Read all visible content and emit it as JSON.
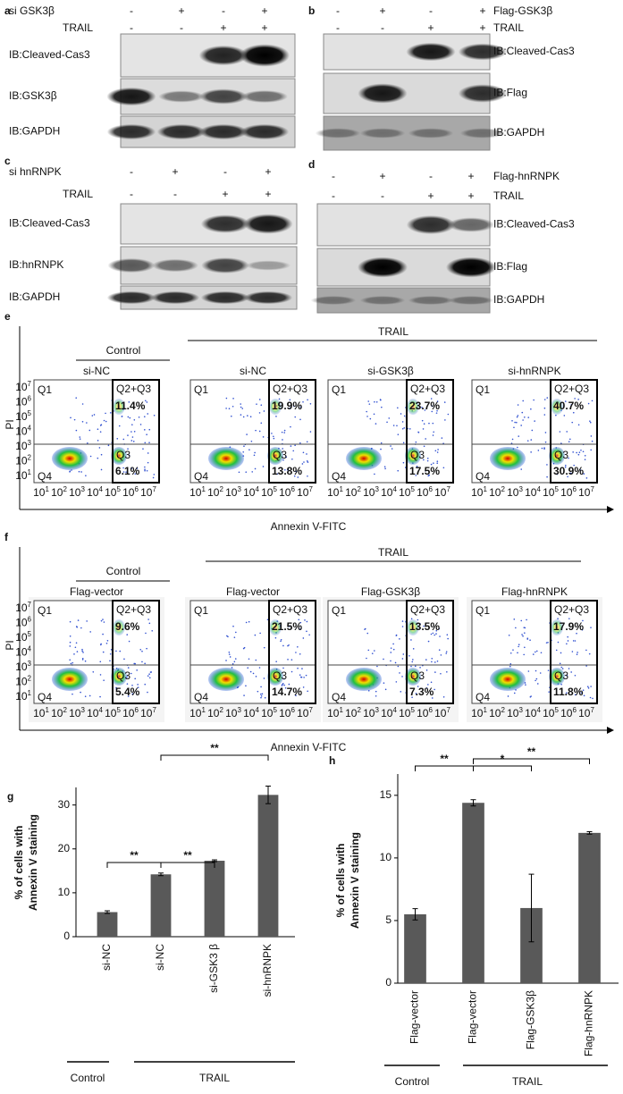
{
  "blots": [
    {
      "label": "a",
      "rows": [
        {
          "name": "si GSK3β",
          "signs": [
            "-",
            "+",
            "-",
            "+"
          ]
        },
        {
          "name": "TRAIL",
          "signs": [
            "-",
            "-",
            "+",
            "+"
          ]
        }
      ],
      "blots": [
        "IB:Cleaved-Cas3",
        "IB:GSK3β",
        "IB:GAPDH"
      ]
    },
    {
      "label": "b",
      "rows": [
        {
          "name": "Flag-GSK3β",
          "signs": [
            "-",
            "+",
            "-",
            "+"
          ]
        },
        {
          "name": "TRAIL",
          "signs": [
            "-",
            "-",
            "+",
            "+"
          ]
        }
      ],
      "blots": [
        "IB:Cleaved-Cas3",
        "IB:Flag",
        "IB:GAPDH"
      ]
    },
    {
      "label": "c",
      "rows": [
        {
          "name": "si hnRNPK",
          "signs": [
            "-",
            "+",
            "-",
            "+"
          ]
        },
        {
          "name": "TRAIL",
          "signs": [
            "-",
            "-",
            "+",
            "+"
          ]
        }
      ],
      "blots": [
        "IB:Cleaved-Cas3",
        "IB:hnRNPK",
        "IB:GAPDH"
      ]
    },
    {
      "label": "d",
      "rows": [
        {
          "name": "Flag-hnRNPK",
          "signs": [
            "-",
            "+",
            "-",
            "+"
          ]
        },
        {
          "name": "TRAIL",
          "signs": [
            "-",
            "-",
            "+",
            "+"
          ]
        }
      ],
      "blots": [
        "IB:Cleaved-Cas3",
        "IB:Flag",
        "IB:GAPDH"
      ]
    }
  ],
  "flow": [
    {
      "label": "e",
      "control_header": "Control",
      "treat_header": "TRAIL",
      "y_label": "PI",
      "x_label": "Annexin V-FITC",
      "axis_base": "10",
      "axis_exponents": [
        "1",
        "2",
        "3",
        "4",
        "5",
        "6",
        "7"
      ],
      "quadrants": [
        "Q1",
        "Q2+Q3",
        "Q3",
        "Q4"
      ],
      "plots": [
        {
          "name": "si-NC",
          "upper": "11.4%",
          "lower": "6.1%"
        },
        {
          "name": "si-NC",
          "upper": "19.9%",
          "lower": "13.8%"
        },
        {
          "name": "si-GSK3β",
          "upper": "23.7%",
          "lower": "17.5%"
        },
        {
          "name": "si-hnRNPK",
          "upper": "40.7%",
          "lower": "30.9%"
        }
      ]
    },
    {
      "label": "f",
      "control_header": "Control",
      "treat_header": "TRAIL",
      "y_label": "PI",
      "x_label": "Annexin V-FITC",
      "axis_base": "10",
      "axis_exponents": [
        "1",
        "2",
        "3",
        "4",
        "5",
        "6",
        "7"
      ],
      "quadrants": [
        "Q1",
        "Q2+Q3",
        "Q3",
        "Q4"
      ],
      "plots": [
        {
          "name": "Flag-vector",
          "upper": "9.6%",
          "lower": "5.4%"
        },
        {
          "name": "Flag-vector",
          "upper": "21.5%",
          "lower": "14.7%"
        },
        {
          "name": "Flag-GSK3β",
          "upper": "13.5%",
          "lower": "7.3%"
        },
        {
          "name": "Flag-hnRNPK",
          "upper": "17.9%",
          "lower": "11.8%"
        }
      ]
    }
  ],
  "chart_data": [
    {
      "type": "bar",
      "label": "g",
      "y_label": [
        "% of cells with",
        "Annexin V staining"
      ],
      "categories": [
        "si-NC",
        "si-NC",
        "si-GSK3 β",
        "si-hnRNPK"
      ],
      "values": [
        5.6,
        14.2,
        17.3,
        32.3
      ],
      "errors": [
        0.3,
        0.3,
        0.2,
        2.0
      ],
      "color": "#595959",
      "ylim": [
        0,
        34
      ],
      "yticks": [
        0,
        10,
        20,
        30
      ],
      "groups": [
        "Control",
        "TRAIL"
      ],
      "significance": [
        "**",
        "**",
        "**"
      ]
    },
    {
      "type": "bar",
      "label": "h",
      "y_label": [
        "% of cells with",
        "Annexin V staining"
      ],
      "categories": [
        "Flag-vector",
        "Flag-vector",
        "Flag-GSK3β",
        "Flag-hnRNPK"
      ],
      "values": [
        5.5,
        14.4,
        6.0,
        12.0
      ],
      "errors": [
        0.45,
        0.25,
        2.7,
        0.1
      ],
      "color": "#595959",
      "ylim": [
        0,
        16.7
      ],
      "yticks": [
        0,
        5,
        10,
        15
      ],
      "groups": [
        "Control",
        "TRAIL"
      ],
      "significance": [
        "**",
        "*",
        "**"
      ]
    }
  ]
}
